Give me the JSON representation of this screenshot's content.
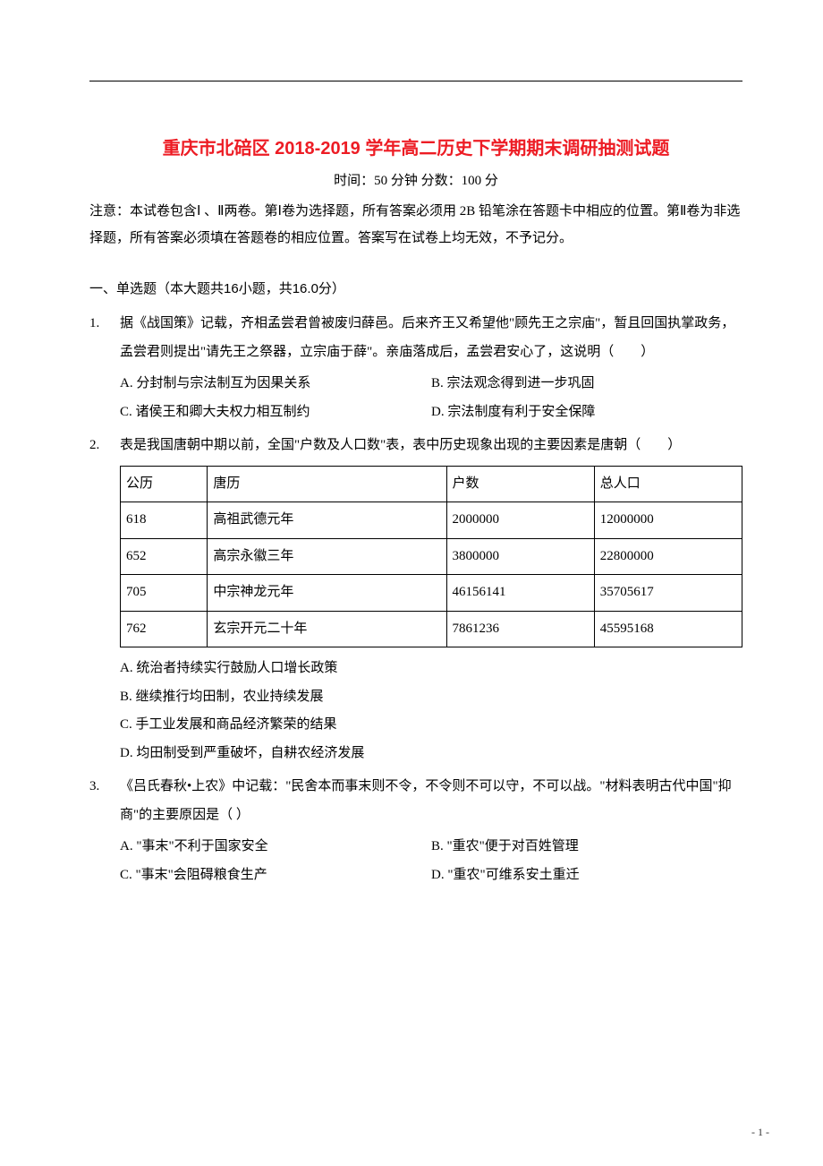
{
  "title": "重庆市北碚区 2018-2019 学年高二历史下学期期末调研抽测试题",
  "subtitle": "时间：50 分钟 分数：100 分",
  "notice": "注意：本试卷包含Ⅰ 、Ⅱ两卷。第Ⅰ卷为选择题，所有答案必须用 2B 铅笔涂在答题卡中相应的位置。第Ⅱ卷为非选择题，所有答案必须填在答题卷的相应位置。答案写在试卷上均无效，不予记分。",
  "section_heading_prefix": "一、单选题（本大题共",
  "section_heading_count": "16",
  "section_heading_mid": "小题，共",
  "section_heading_score": "16.0",
  "section_heading_suffix": "分）",
  "questions": [
    {
      "num": "1.",
      "stem": "据《战国策》记载，齐相孟尝君曾被废归薛邑。后来齐王又希望他\"顾先王之宗庙\"，暂且回国执掌政务，孟尝君则提出\"请先王之祭器，立宗庙于薛\"。亲庙落成后，孟尝君安心了，这说明（　　）",
      "layout": "2col",
      "options": [
        "A. 分封制与宗法制互为因果关系",
        "B. 宗法观念得到进一步巩固",
        "C. 诸侯王和卿大夫权力相互制约",
        "D. 宗法制度有利于安全保障"
      ]
    },
    {
      "num": "2.",
      "stem": "表是我国唐朝中期以前，全国\"户数及人口数\"表，表中历史现象出现的主要因素是唐朝（　　）",
      "table": {
        "columns": [
          "公历",
          "唐历",
          "户数",
          "总人口"
        ],
        "rows": [
          [
            "618",
            "高祖武德元年",
            "2000000",
            "12000000"
          ],
          [
            "652",
            "高宗永徽三年",
            "3800000",
            "22800000"
          ],
          [
            "705",
            "中宗神龙元年",
            "46156141",
            "35705617"
          ],
          [
            "762",
            "玄宗开元二十年",
            "7861236",
            "45595168"
          ]
        ]
      },
      "layout": "1col",
      "options": [
        "A. 统治者持续实行鼓励人口增长政策",
        "B. 继续推行均田制，农业持续发展",
        "C. 手工业发展和商品经济繁荣的结果",
        "D. 均田制受到严重破坏，自耕农经济发展"
      ]
    },
    {
      "num": "3.",
      "stem": "《吕氏春秋•上农》中记载：\"民舍本而事末则不令，不令则不可以守，不可以战。\"材料表明古代中国\"抑商\"的主要原因是（ ）",
      "layout": "2col",
      "options": [
        "A. \"事末\"不利于国家安全",
        "B. \"重农\"便于对百姓管理",
        "C. \"事末\"会阻碍粮食生产",
        "D. \"重农\"可维系安土重迁"
      ]
    }
  ],
  "page_number": "- 1 -",
  "colors": {
    "title_color": "#ed1c24",
    "text_color": "#000000",
    "background": "#ffffff",
    "border_color": "#000000"
  }
}
